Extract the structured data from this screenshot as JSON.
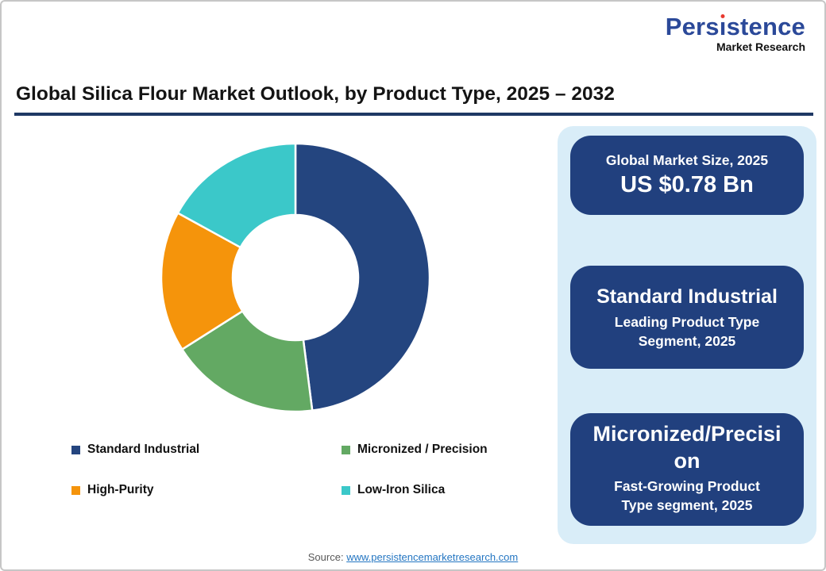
{
  "logo": {
    "brand": "Persistence",
    "tagline": "Market Research",
    "brand_color": "#2B4999",
    "dot_color": "#E8392F"
  },
  "header": {
    "title": "Global Silica Flour Market Outlook, by Product Type, 2025 – 2032",
    "underline_color": "#1F3864"
  },
  "chart_data": {
    "type": "pie",
    "variant": "donut",
    "title": "Global Silica Flour Market Outlook, by Product Type, 2025 – 2032",
    "categories": [
      "Standard Industrial",
      "Micronized / Precision",
      "High-Purity",
      "Low-Iron Silica"
    ],
    "values": [
      48,
      18,
      17,
      17
    ],
    "values_unit": "percent share (estimated from arc angles)",
    "colors": [
      "#24457F",
      "#63A963",
      "#F5940B",
      "#3BC8C9"
    ],
    "start_angle_deg": 0,
    "direction": "clockwise",
    "inner_radius_ratio": 0.47,
    "legend_position": "below-chart"
  },
  "panel": {
    "background": "#D9EDF8",
    "card_background": "#21407E",
    "cards": [
      {
        "title": "Global Market Size, 2025",
        "value": "US $0.78 Bn"
      },
      {
        "title": "Standard Industrial",
        "subtitle": "Leading Product Type Segment, 2025"
      },
      {
        "title": "Micronized/Precision",
        "subtitle": "Fast-Growing Product Type segment, 2025"
      }
    ]
  },
  "footer": {
    "source_label": "Source:",
    "source_link": "www.persistencemarketresearch.com",
    "link_color": "#2476C2"
  }
}
